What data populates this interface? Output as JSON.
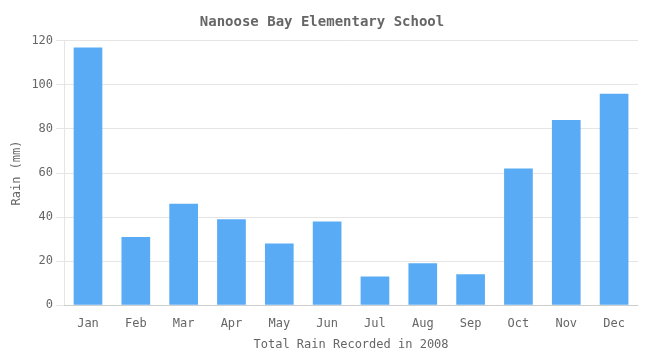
{
  "chart_data": {
    "type": "bar",
    "title": "Nanoose Bay Elementary School",
    "xlabel": "Total Rain Recorded in 2008",
    "ylabel": "Rain (mm)",
    "categories": [
      "Jan",
      "Feb",
      "Mar",
      "Apr",
      "May",
      "Jun",
      "Jul",
      "Aug",
      "Sep",
      "Oct",
      "Nov",
      "Dec"
    ],
    "values": [
      117,
      31,
      46,
      39,
      28,
      38,
      13,
      19,
      14,
      62,
      84,
      96
    ],
    "color": "#5aabf5",
    "ylim": [
      0,
      120
    ],
    "yticks": [
      0,
      20,
      40,
      60,
      80,
      100,
      120
    ],
    "grid": true
  }
}
